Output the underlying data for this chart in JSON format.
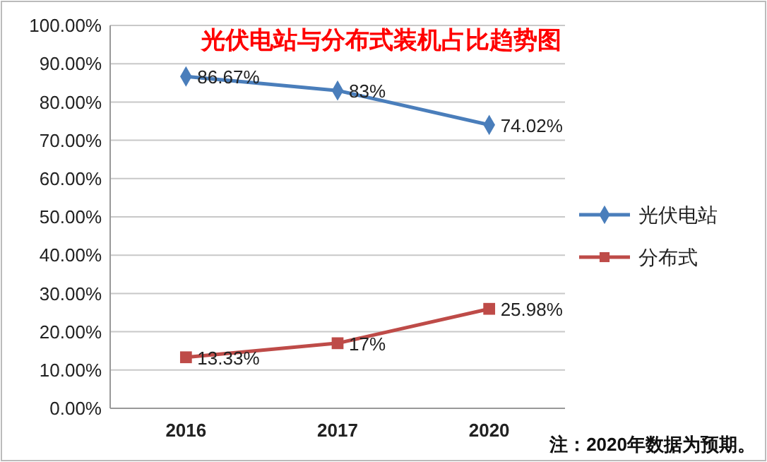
{
  "chart_data": {
    "type": "line",
    "title": "光伏电站与分布式装机占比趋势图",
    "categories": [
      "2016",
      "2017",
      "2020"
    ],
    "series": [
      {
        "name": "光伏电站",
        "color": "#4a7ebb",
        "marker": "diamond",
        "values": [
          86.67,
          83,
          74.02
        ],
        "value_labels": [
          "86.67%",
          "83%",
          "74.02%"
        ]
      },
      {
        "name": "分布式",
        "color": "#be4b48",
        "marker": "square",
        "values": [
          13.33,
          17,
          25.98
        ],
        "value_labels": [
          "13.33%",
          "17%",
          "25.98%"
        ]
      }
    ],
    "ylim": [
      0,
      100
    ],
    "yticks": [
      {
        "value": 0,
        "label": "0.00%"
      },
      {
        "value": 10,
        "label": "10.00%"
      },
      {
        "value": 20,
        "label": "20.00%"
      },
      {
        "value": 30,
        "label": "30.00%"
      },
      {
        "value": 40,
        "label": "40.00%"
      },
      {
        "value": 50,
        "label": "50.00%"
      },
      {
        "value": 60,
        "label": "60.00%"
      },
      {
        "value": 70,
        "label": "70.00%"
      },
      {
        "value": 80,
        "label": "80.00%"
      },
      {
        "value": 90,
        "label": "90.00%"
      },
      {
        "value": 100,
        "label": "100.00%"
      }
    ],
    "grid": "y",
    "legend": "right",
    "annotations": [
      "注：2020年数据为预期。"
    ]
  }
}
